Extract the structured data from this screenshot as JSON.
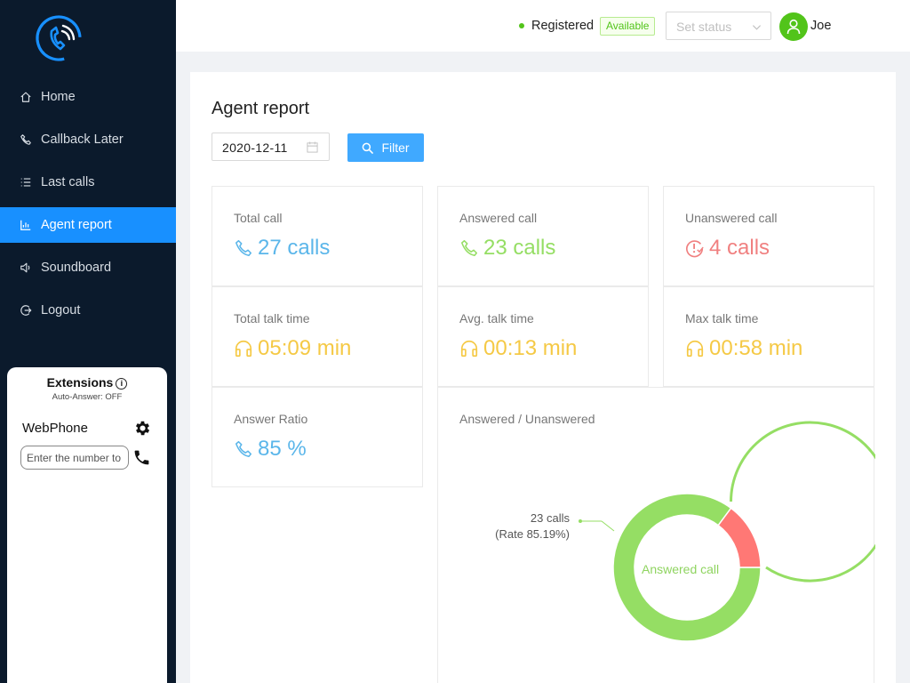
{
  "sidebar": {
    "items": [
      {
        "label": "Home",
        "icon": "home-icon"
      },
      {
        "label": "Callback Later",
        "icon": "phone-icon"
      },
      {
        "label": "Last calls",
        "icon": "list-icon"
      },
      {
        "label": "Agent report",
        "icon": "bar-chart-icon",
        "active": true
      },
      {
        "label": "Soundboard",
        "icon": "sound-icon"
      },
      {
        "label": "Logout",
        "icon": "logout-icon"
      }
    ]
  },
  "phone": {
    "extensions_title": "Extensions",
    "auto_answer": "Auto-Answer: OFF",
    "webphone_label": "WebPhone",
    "dial_placeholder": "Enter the number to call"
  },
  "header": {
    "registration": "Registered",
    "availability": "Available",
    "status_placeholder": "Set status",
    "user_name": "Joe"
  },
  "report": {
    "title": "Agent report",
    "date": "2020-12-11",
    "filter_label": "Filter",
    "stats": [
      {
        "label": "Total call",
        "value": "27 calls",
        "icon": "phone-icon",
        "color": "#5bb6ea"
      },
      {
        "label": "Answered call",
        "value": "23 calls",
        "icon": "phone-icon",
        "color": "#95de64"
      },
      {
        "label": "Unanswered call",
        "value": "4 calls",
        "icon": "missed-call-icon",
        "color": "#f08080"
      },
      {
        "label": "Total talk time",
        "value": "05:09 min",
        "icon": "headset-icon",
        "color": "#f5c945"
      },
      {
        "label": "Avg. talk time",
        "value": "00:13 min",
        "icon": "headset-icon",
        "color": "#f5c945"
      },
      {
        "label": "Max talk time",
        "value": "00:58 min",
        "icon": "headset-icon",
        "color": "#f5c945"
      },
      {
        "label": "Answer Ratio",
        "value": "85 %",
        "icon": "phone-icon",
        "color": "#5bb6ea"
      }
    ],
    "chart": {
      "title": "Answered / Unanswered",
      "callout_calls": "23 calls",
      "callout_rate": "(Rate 85.19%)",
      "center_label": "Answered call"
    }
  },
  "chart_data": {
    "type": "pie",
    "title": "Answered / Unanswered",
    "categories": [
      "Answered call",
      "Unanswered call"
    ],
    "values": [
      23,
      4
    ],
    "colors": [
      "#95de64",
      "#ff7875"
    ]
  }
}
